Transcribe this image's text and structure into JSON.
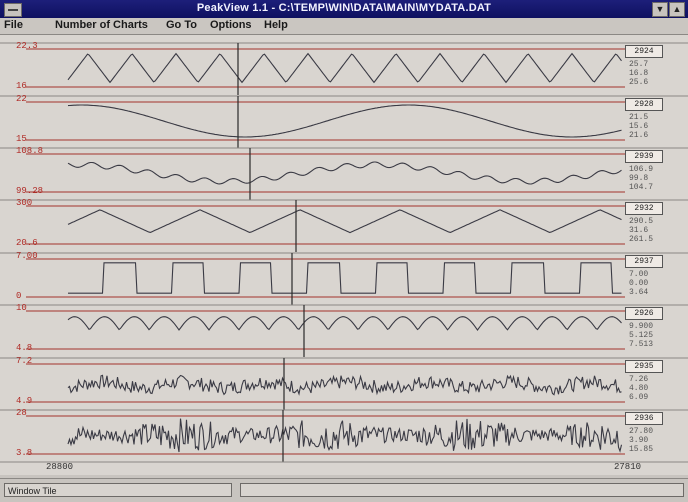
{
  "window": {
    "title": "PeakView 1.1 - C:\\TEMP\\WIN\\DATA\\MAIN\\MYDATA.DAT"
  },
  "menu": [
    {
      "label": "File"
    },
    {
      "label": "Number of Charts"
    },
    {
      "label": "Go To"
    },
    {
      "label": "Options"
    },
    {
      "label": "Help"
    }
  ],
  "channels": [
    {
      "ymax": "22.3",
      "ymin": "16",
      "box": "2924",
      "vals": [
        "25.7",
        "16.8",
        "25.6"
      ]
    },
    {
      "ymax": "22",
      "ymin": "15",
      "box": "2928",
      "vals": [
        "21.5",
        "15.6",
        "21.6"
      ]
    },
    {
      "ymax": "108.8",
      "ymin": "99.28",
      "box": "2939",
      "vals": [
        "106.9",
        "99.8",
        "104.7"
      ]
    },
    {
      "ymax": "300",
      "ymin": "20.6",
      "box": "2932",
      "vals": [
        "290.5",
        "31.6",
        "261.5"
      ]
    },
    {
      "ymax": "7.00",
      "ymin": "0",
      "box": "2937",
      "vals": [
        "7.00",
        "0.00",
        "3.64"
      ]
    },
    {
      "ymax": "10",
      "ymin": "4.8",
      "box": "2926",
      "vals": [
        "9.900",
        "5.125",
        "7.513"
      ]
    },
    {
      "ymax": "7.2",
      "ymin": "4.9",
      "box": "2935",
      "vals": [
        "7.26",
        "4.80",
        "6.09"
      ]
    },
    {
      "ymax": "28",
      "ymin": "3.8",
      "box": "2936",
      "vals": [
        "27.80",
        "3.90",
        "15.85"
      ]
    }
  ],
  "xaxis": {
    "start": "28800",
    "end": "27810"
  },
  "status": {
    "left": "Window Tile",
    "right": ""
  },
  "colors": {
    "trace": "#3a3a44",
    "redline": "#a3332c",
    "cursor": "#2a2a2a",
    "labels": "#b02a25"
  }
}
